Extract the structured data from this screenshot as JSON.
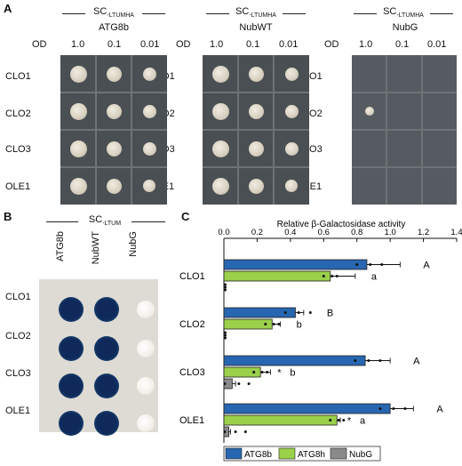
{
  "panelA": {
    "letter": "A",
    "medium": "SC",
    "medium_sub": "-LTUMHA",
    "od_label": "OD",
    "od_values": [
      "1.0",
      "0.1",
      "0.01"
    ],
    "rows": [
      "CLO1",
      "CLO2",
      "CLO3",
      "OLE1"
    ],
    "strains": [
      "ATG8b",
      "NubWT",
      "NubG"
    ]
  },
  "panelB": {
    "letter": "B",
    "medium": "SC",
    "medium_sub": "-LTUM",
    "columns": [
      "ATG8b",
      "NubWT",
      "NubG"
    ],
    "rows": [
      "CLO1",
      "CLO2",
      "CLO3",
      "OLE1"
    ],
    "colors": {
      "blue_dark": "#0f2a5a",
      "blue_mid": "#1f5b8a",
      "pale": "#f3f0ea"
    }
  },
  "panelC": {
    "letter": "C",
    "chart_data": {
      "type": "bar",
      "orientation": "horizontal",
      "title": "Relative β-Galactosidase activity",
      "xlim": [
        0,
        1.4
      ],
      "x_ticks": [
        "0.0",
        "0.2",
        "0.4",
        "0.6",
        "0.8",
        "1.0",
        "1.2",
        "1.4"
      ],
      "x_axis_position": "top",
      "categories": [
        "CLO1",
        "CLO2",
        "CLO3",
        "OLE1"
      ],
      "series": [
        {
          "name": "ATG8b",
          "color": "#2766b0",
          "values": [
            0.86,
            0.43,
            0.85,
            1.0
          ],
          "errors": [
            0.2,
            0.05,
            0.15,
            0.14
          ],
          "letters": [
            "A",
            "B",
            "A",
            "A"
          ],
          "stars": [
            "",
            "",
            "",
            ""
          ]
        },
        {
          "name": "ATG8h",
          "color": "#9ad04a",
          "values": [
            0.64,
            0.29,
            0.22,
            0.68
          ],
          "errors": [
            0.15,
            0.05,
            0.06,
            0.02
          ],
          "letters": [
            "a",
            "b",
            "b",
            "a"
          ],
          "stars": [
            "",
            "",
            "*",
            "*"
          ]
        },
        {
          "name": "NubG",
          "color": "#8a8a8a",
          "values": [
            0.0,
            0.0,
            0.05,
            0.03
          ],
          "errors": [
            0.0,
            0.0,
            0.02,
            0.01
          ],
          "letters": [
            "",
            "",
            "",
            ""
          ],
          "stars": [
            "",
            "",
            "",
            ""
          ]
        }
      ],
      "legend": {
        "placement": "bottom",
        "entries": [
          "ATG8b",
          "ATG8h",
          "NubG"
        ]
      }
    }
  }
}
